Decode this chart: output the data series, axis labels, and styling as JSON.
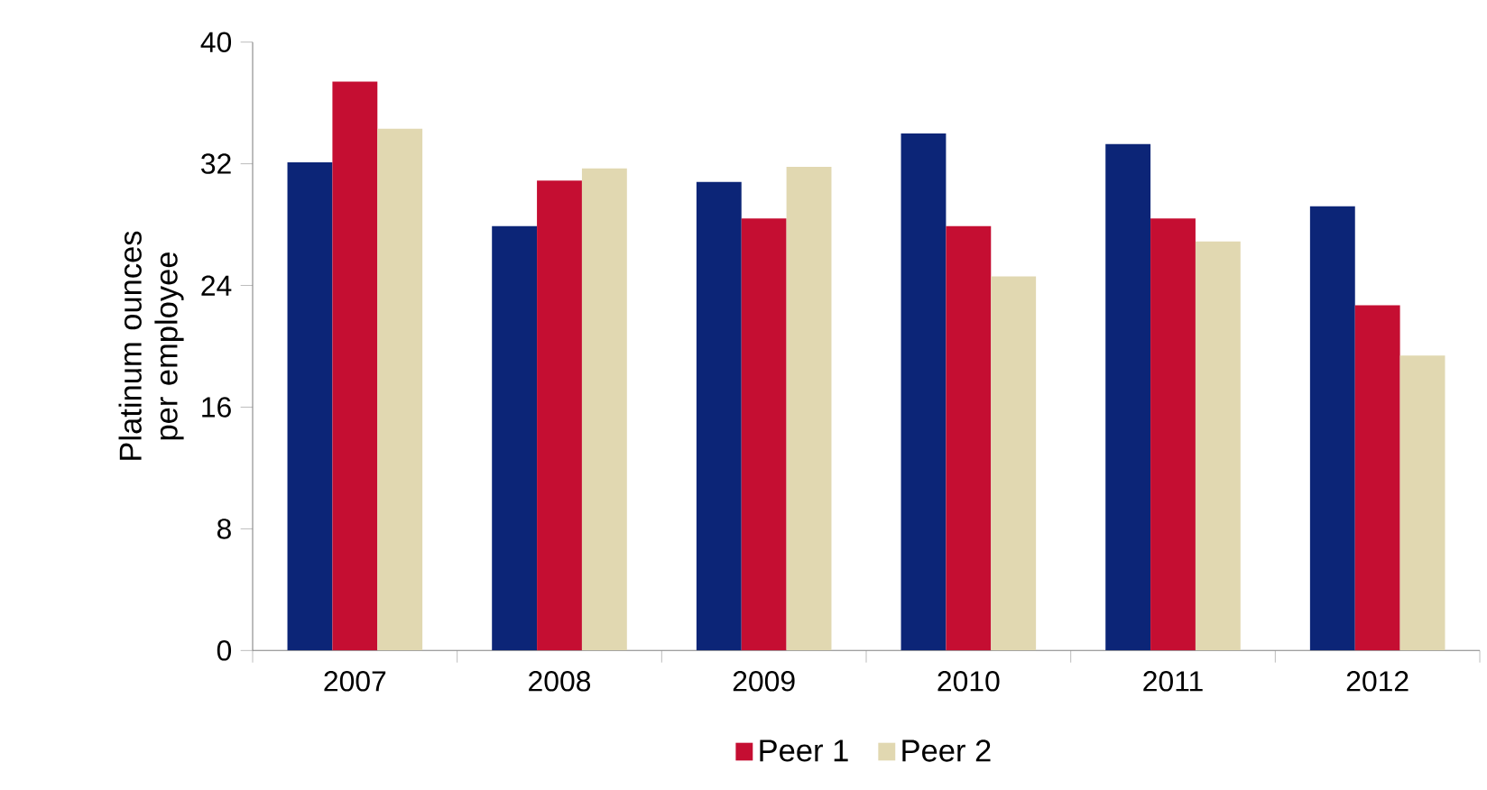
{
  "chart_data": {
    "type": "bar",
    "ylabel": "Platinum ounces per employee",
    "categories": [
      "2007",
      "2008",
      "2009",
      "2010",
      "2011",
      "2012"
    ],
    "series": [
      {
        "color": "#0c2577",
        "values": [
          32.1,
          27.9,
          30.8,
          34.0,
          33.3,
          29.2
        ]
      },
      {
        "name": "Peer 1",
        "color": "#c50e32",
        "values": [
          37.4,
          30.9,
          28.4,
          27.9,
          28.4,
          22.7
        ]
      },
      {
        "name": "Peer 2",
        "color": "#e1d8b1",
        "values": [
          34.3,
          31.7,
          31.8,
          24.6,
          26.9,
          19.4
        ]
      }
    ],
    "ylim": [
      0,
      40
    ],
    "yticks": [
      0,
      8,
      16,
      24,
      32,
      40
    ],
    "grid": false,
    "legend": "bottom"
  }
}
